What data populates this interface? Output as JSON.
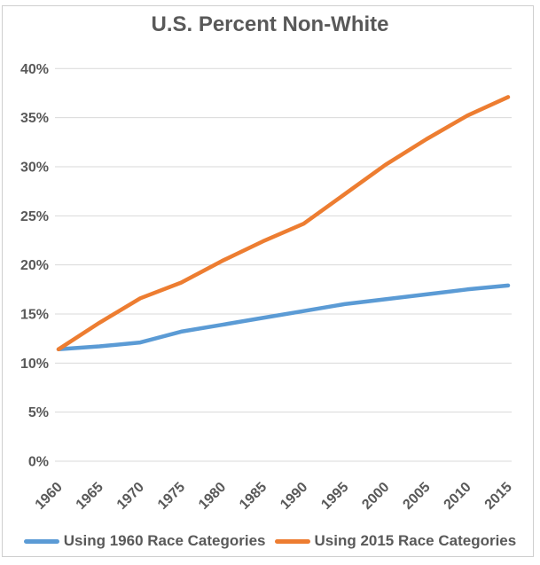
{
  "page": {
    "title": "U.S. Percent Non-White"
  },
  "chart_data": {
    "type": "line",
    "title": "U.S. Percent Non-White",
    "x": [
      1960,
      1965,
      1970,
      1975,
      1980,
      1985,
      1990,
      1995,
      2000,
      2005,
      2010,
      2015
    ],
    "series": [
      {
        "name": "Using 1960 Race Categories",
        "color": "#5B9BD5",
        "values": [
          11.4,
          11.7,
          12.1,
          13.2,
          13.9,
          14.6,
          15.3,
          16.0,
          16.5,
          17.0,
          17.5,
          17.9
        ]
      },
      {
        "name": "Using 2015 Race Categories",
        "color": "#ED7D31",
        "values": [
          11.4,
          14.1,
          16.6,
          18.2,
          20.4,
          22.4,
          24.2,
          27.2,
          30.2,
          32.8,
          35.2,
          37.1
        ]
      }
    ],
    "xlabel": "",
    "ylabel": "",
    "ylim": [
      0,
      40
    ],
    "ytick_step": 5,
    "ytick_labels": [
      "0%",
      "5%",
      "10%",
      "15%",
      "20%",
      "25%",
      "30%",
      "35%",
      "40%"
    ],
    "grid": true,
    "legend_position": "bottom"
  },
  "colors": {
    "text": "#595959",
    "gridline": "#D9D9D9",
    "frame_border": "#CFCFCF",
    "background": "#FFFFFF"
  }
}
